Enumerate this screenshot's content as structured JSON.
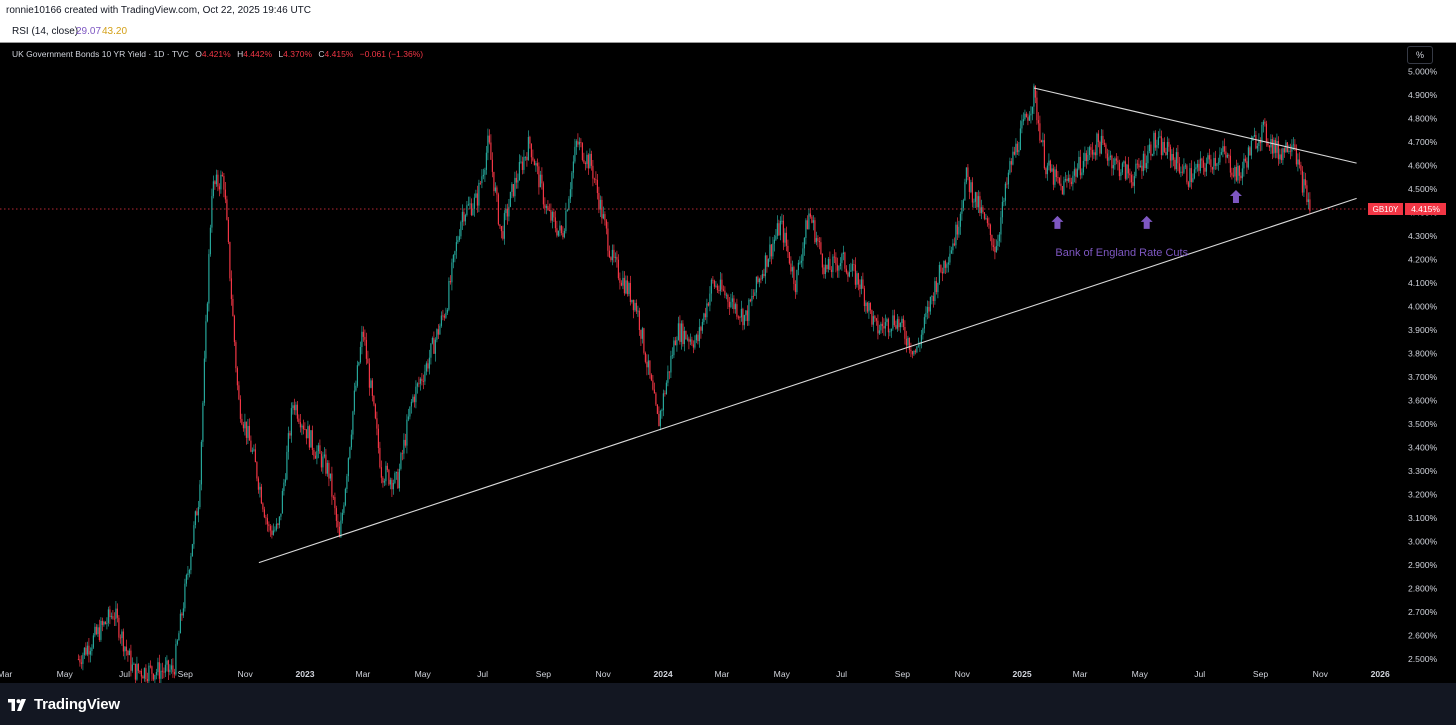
{
  "header": {
    "credit": "ronnie10166 created with TradingView.com, Oct 22, 2025 19:46 UTC"
  },
  "rsi": {
    "label": "RSI (14, close)",
    "value1": "29.07",
    "value2": "43.20"
  },
  "legend": {
    "title": "UK Government Bonds 10 YR Yield · 1D · TVC",
    "o_key": "O",
    "o_val": "4.421%",
    "h_key": "H",
    "h_val": "4.442%",
    "l_key": "L",
    "l_val": "4.370%",
    "c_key": "C",
    "c_val": "4.415%",
    "change": "−0.061 (−1.36%)"
  },
  "axis_unit": "%",
  "price_tag": {
    "symbol": "GB10Y",
    "value": "4.415%"
  },
  "annotation": {
    "text": "Bank of England Rate Cuts",
    "color": "#7e57c2"
  },
  "footer": {
    "brand": "TradingView"
  },
  "colors": {
    "up": "#26a69a",
    "down": "#f23645",
    "background": "#000000",
    "axis_text": "#d1d4dc",
    "trendline": "#d9d9d9"
  },
  "chart_data": {
    "type": "candlestick",
    "symbol": "GB10Y",
    "interval": "1D",
    "ylim": [
      2.45,
      5.02
    ],
    "y_ticks": [
      "5.000%",
      "4.900%",
      "4.800%",
      "4.700%",
      "4.600%",
      "4.500%",
      "4.400%",
      "4.300%",
      "4.200%",
      "4.100%",
      "4.000%",
      "3.900%",
      "3.800%",
      "3.700%",
      "3.600%",
      "3.500%",
      "3.400%",
      "3.300%",
      "3.200%",
      "3.100%",
      "3.000%",
      "2.900%",
      "2.800%",
      "2.700%",
      "2.600%",
      "2.500%"
    ],
    "x_ticks": [
      "Mar",
      "May",
      "Jul",
      "Sep",
      "Nov",
      "2023",
      "Mar",
      "May",
      "Jul",
      "Sep",
      "Nov",
      "2024",
      "Mar",
      "May",
      "Jul",
      "Sep",
      "Nov",
      "2025",
      "Mar",
      "May",
      "Jul",
      "Sep",
      "Nov",
      "2026"
    ],
    "x_ticks_bold": [
      5,
      11,
      17,
      23
    ],
    "last_close": 4.415,
    "price_path": [
      [
        "2022-05-15",
        2.5
      ],
      [
        "2022-06-20",
        2.7
      ],
      [
        "2022-07-10",
        2.45
      ],
      [
        "2022-08-20",
        2.45
      ],
      [
        "2022-09-15",
        3.2
      ],
      [
        "2022-09-28",
        4.5
      ],
      [
        "2022-10-10",
        4.55
      ],
      [
        "2022-10-25",
        3.6
      ],
      [
        "2022-11-10",
        3.35
      ],
      [
        "2022-11-25",
        3.05
      ],
      [
        "2022-12-05",
        3.05
      ],
      [
        "2022-12-20",
        3.6
      ],
      [
        "2023-01-10",
        3.4
      ],
      [
        "2023-01-25",
        3.3
      ],
      [
        "2023-02-05",
        3.0
      ],
      [
        "2023-02-20",
        3.6
      ],
      [
        "2023-03-01",
        3.9
      ],
      [
        "2023-03-20",
        3.3
      ],
      [
        "2023-04-05",
        3.25
      ],
      [
        "2023-04-20",
        3.6
      ],
      [
        "2023-05-05",
        3.75
      ],
      [
        "2023-05-25",
        4.0
      ],
      [
        "2023-06-10",
        4.4
      ],
      [
        "2023-06-25",
        4.45
      ],
      [
        "2023-07-07",
        4.7
      ],
      [
        "2023-07-20",
        4.3
      ],
      [
        "2023-08-01",
        4.5
      ],
      [
        "2023-08-18",
        4.7
      ],
      [
        "2023-09-05",
        4.4
      ],
      [
        "2023-09-20",
        4.3
      ],
      [
        "2023-10-05",
        4.7
      ],
      [
        "2023-10-20",
        4.6
      ],
      [
        "2023-11-10",
        4.2
      ],
      [
        "2023-12-05",
        4.0
      ],
      [
        "2023-12-27",
        3.5
      ],
      [
        "2024-01-15",
        3.9
      ],
      [
        "2024-02-05",
        3.85
      ],
      [
        "2024-02-20",
        4.1
      ],
      [
        "2024-03-05",
        4.05
      ],
      [
        "2024-03-25",
        3.95
      ],
      [
        "2024-04-15",
        4.2
      ],
      [
        "2024-04-30",
        4.35
      ],
      [
        "2024-05-15",
        4.1
      ],
      [
        "2024-05-29",
        4.4
      ],
      [
        "2024-06-15",
        4.15
      ],
      [
        "2024-07-01",
        4.2
      ],
      [
        "2024-07-20",
        4.1
      ],
      [
        "2024-08-05",
        3.9
      ],
      [
        "2024-08-25",
        3.95
      ],
      [
        "2024-09-15",
        3.8
      ],
      [
        "2024-10-05",
        4.1
      ],
      [
        "2024-10-25",
        4.3
      ],
      [
        "2024-11-05",
        4.55
      ],
      [
        "2024-11-20",
        4.4
      ],
      [
        "2024-12-05",
        4.25
      ],
      [
        "2024-12-20",
        4.6
      ],
      [
        "2025-01-13",
        4.9
      ],
      [
        "2025-01-25",
        4.6
      ],
      [
        "2025-02-10",
        4.5
      ],
      [
        "2025-03-01",
        4.6
      ],
      [
        "2025-03-20",
        4.7
      ],
      [
        "2025-04-08",
        4.6
      ],
      [
        "2025-04-25",
        4.55
      ],
      [
        "2025-05-15",
        4.7
      ],
      [
        "2025-06-01",
        4.65
      ],
      [
        "2025-06-20",
        4.55
      ],
      [
        "2025-07-05",
        4.6
      ],
      [
        "2025-07-25",
        4.65
      ],
      [
        "2025-08-10",
        4.55
      ],
      [
        "2025-08-25",
        4.7
      ],
      [
        "2025-09-03",
        4.75
      ],
      [
        "2025-09-20",
        4.65
      ],
      [
        "2025-10-05",
        4.72
      ],
      [
        "2025-10-10",
        4.58
      ],
      [
        "2025-10-22",
        4.415
      ]
    ],
    "trendlines": [
      {
        "name": "support",
        "points": [
          [
            "2022-11-15",
            2.91
          ],
          [
            "2025-12-08",
            4.46
          ]
        ]
      },
      {
        "name": "resistance",
        "points": [
          [
            "2025-01-13",
            4.93
          ],
          [
            "2025-12-08",
            4.61
          ]
        ]
      }
    ],
    "horizontal_line": {
      "value": 4.415,
      "style": "dotted",
      "color": "#f23645"
    },
    "annotations": [
      {
        "text": "Bank of England Rate Cuts",
        "marker": "up-arrow",
        "points": [
          [
            "2025-02-06",
            4.36
          ],
          [
            "2025-05-08",
            4.36
          ],
          [
            "2025-08-07",
            4.47
          ]
        ]
      }
    ]
  }
}
